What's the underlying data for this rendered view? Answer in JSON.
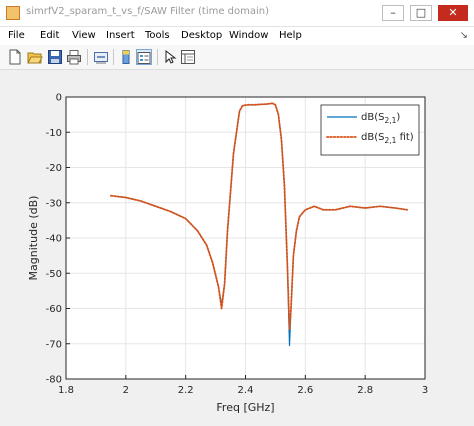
{
  "window": {
    "title": "simrfV2_sparam_t_vs_f/SAW Filter  (time domain)",
    "minimize_glyph": "–",
    "maximize_glyph": "□",
    "close_glyph": "✕"
  },
  "menu": {
    "items": [
      "File",
      "Edit",
      "View",
      "Insert",
      "Tools",
      "Desktop",
      "Window",
      "Help"
    ],
    "overflow_glyph": "↘"
  },
  "toolbar": {
    "icons": [
      "new-figure-icon",
      "open-file-icon",
      "save-icon",
      "print-icon",
      "link-icon",
      "insert-colorbar-icon",
      "insert-legend-icon",
      "select-pointer-icon",
      "property-inspector-icon"
    ]
  },
  "chart_data": {
    "type": "line",
    "xlabel": "Freq [GHz]",
    "ylabel": "Magnitude (dB)",
    "xlim": [
      1.8,
      3.0
    ],
    "ylim": [
      -80,
      0
    ],
    "xticks": [
      "1.8",
      "2",
      "2.2",
      "2.4",
      "2.6",
      "2.8",
      "3"
    ],
    "yticks": [
      "0",
      "-10",
      "-20",
      "-30",
      "-40",
      "-50",
      "-60",
      "-70",
      "-80"
    ],
    "grid": true,
    "legend_position": "top-right",
    "legend": [
      {
        "base": "dB(S",
        "sub": "2,1",
        "tail": ")"
      },
      {
        "base": "dB(S",
        "sub": "2,1",
        "tail": " fit)"
      }
    ],
    "series": [
      {
        "color": "#0072bd",
        "style": "solid",
        "x": [
          1.95,
          2.0,
          2.05,
          2.1,
          2.15,
          2.2,
          2.24,
          2.27,
          2.29,
          2.31,
          2.32,
          2.33,
          2.34,
          2.36,
          2.38,
          2.39,
          2.4,
          2.41,
          2.43,
          2.45,
          2.47,
          2.49,
          2.5,
          2.51,
          2.52,
          2.53,
          2.54,
          2.547,
          2.552,
          2.56,
          2.57,
          2.58,
          2.6,
          2.63,
          2.66,
          2.7,
          2.75,
          2.8,
          2.85,
          2.9,
          2.94
        ],
        "y": [
          -28,
          -28.5,
          -29.5,
          -31,
          -32.5,
          -34.5,
          -38,
          -42,
          -47,
          -54,
          -59,
          -53,
          -38,
          -16,
          -4,
          -2.5,
          -2.3,
          -2.2,
          -2.2,
          -2.1,
          -2.0,
          -1.8,
          -2.2,
          -5,
          -12,
          -25,
          -48,
          -70.5,
          -60,
          -45,
          -38,
          -34,
          -32,
          -31,
          -32,
          -32,
          -31,
          -31.5,
          -31,
          -31.5,
          -32
        ]
      },
      {
        "color": "#d95319",
        "style": "dotted",
        "x": [
          1.95,
          2.0,
          2.05,
          2.1,
          2.15,
          2.2,
          2.24,
          2.27,
          2.29,
          2.31,
          2.32,
          2.33,
          2.34,
          2.36,
          2.38,
          2.39,
          2.4,
          2.41,
          2.43,
          2.45,
          2.47,
          2.49,
          2.5,
          2.51,
          2.52,
          2.53,
          2.54,
          2.547,
          2.552,
          2.56,
          2.57,
          2.58,
          2.6,
          2.63,
          2.66,
          2.7,
          2.75,
          2.8,
          2.85,
          2.9,
          2.94
        ],
        "y": [
          -28,
          -28.5,
          -29.5,
          -31,
          -32.5,
          -34.5,
          -38,
          -42,
          -47,
          -54,
          -60,
          -53,
          -38,
          -16,
          -4,
          -2.5,
          -2.3,
          -2.2,
          -2.2,
          -2.1,
          -2.0,
          -1.8,
          -2.2,
          -5,
          -12,
          -25,
          -48,
          -66,
          -60,
          -45,
          -38,
          -34,
          -32,
          -31,
          -32,
          -32,
          -31,
          -31.5,
          -31,
          -31.5,
          -32
        ]
      }
    ]
  }
}
